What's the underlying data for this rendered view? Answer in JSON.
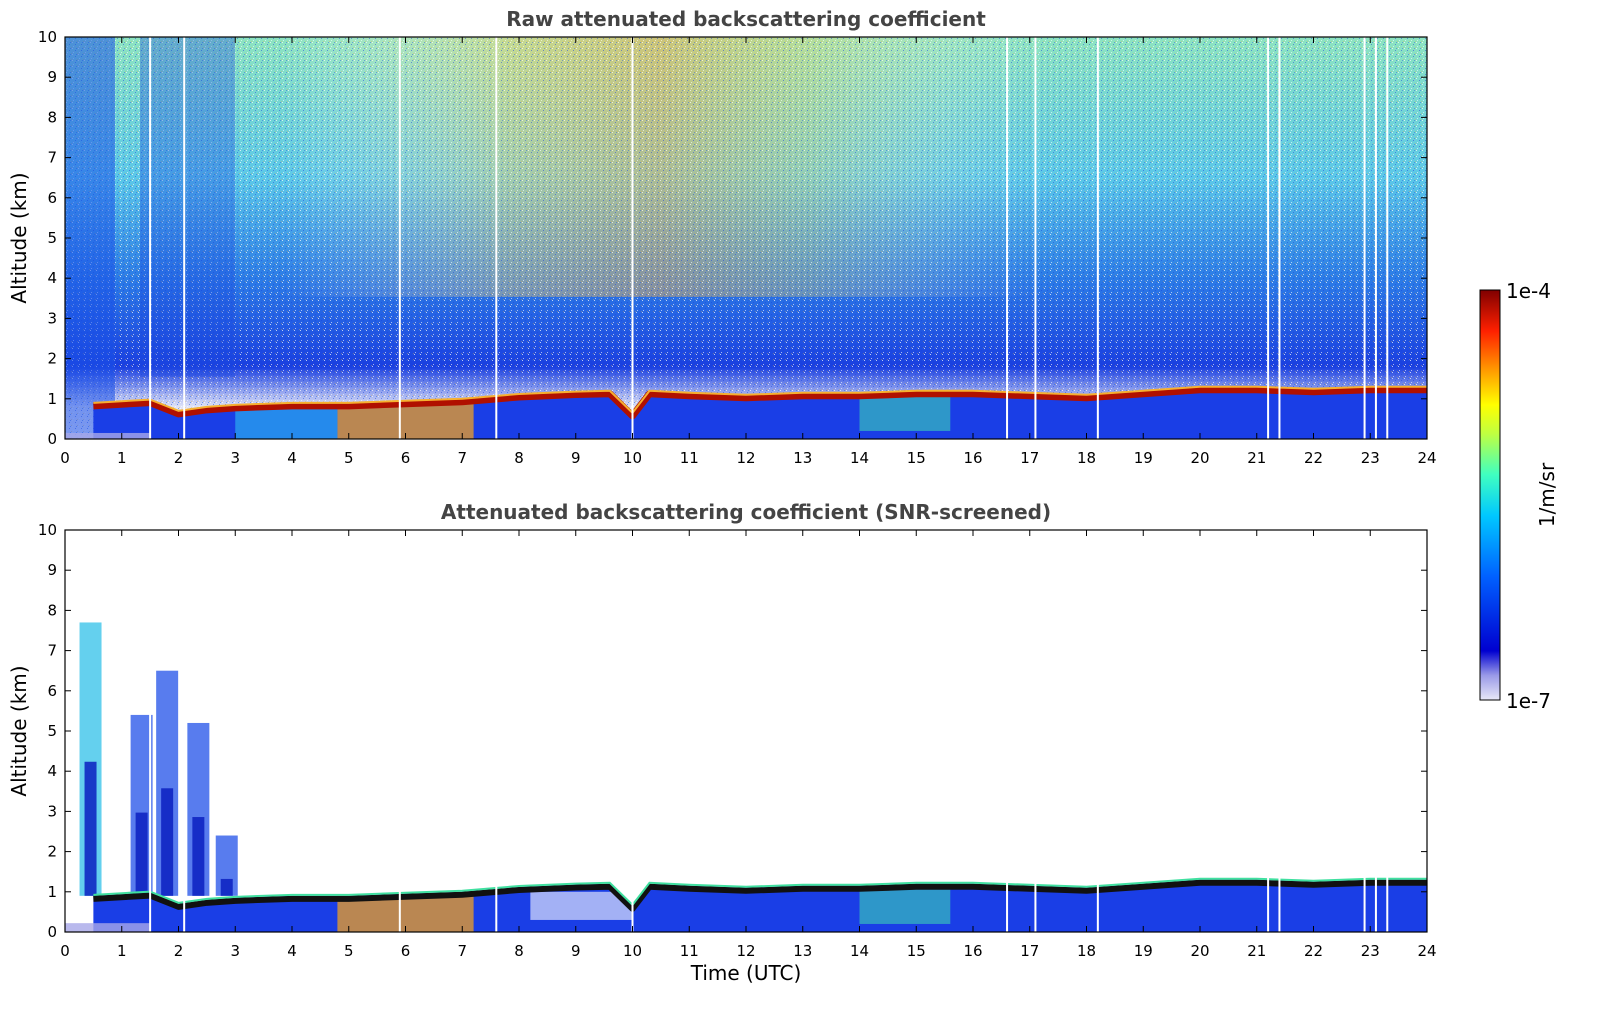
{
  "chart_data": [
    {
      "type": "heatmap",
      "title": "Raw attenuated backscattering coefficient",
      "xlabel": "",
      "ylabel": "Altitude (km)",
      "xlim": [
        0,
        24
      ],
      "ylim": [
        0,
        10
      ],
      "x_ticks": [
        0,
        1,
        2,
        3,
        4,
        5,
        6,
        7,
        8,
        9,
        10,
        11,
        12,
        13,
        14,
        15,
        16,
        17,
        18,
        19,
        20,
        21,
        22,
        23,
        24
      ],
      "y_ticks": [
        0,
        1,
        2,
        3,
        4,
        5,
        6,
        7,
        8,
        9,
        10
      ],
      "colorscale": "jet",
      "layer_top_km": {
        "time_utc": [
          0.5,
          1.5,
          2.0,
          2.5,
          3.0,
          4.0,
          5.0,
          6.0,
          7.0,
          8.0,
          9.0,
          9.6,
          10.0,
          10.3,
          11.0,
          12.0,
          13.0,
          14.0,
          15.0,
          16.0,
          17.0,
          18.0,
          19.0,
          20.0,
          21.0,
          22.0,
          23.0,
          24.0
        ],
        "altitude_km": [
          0.9,
          0.98,
          0.7,
          0.8,
          0.85,
          0.9,
          0.9,
          0.95,
          1.0,
          1.12,
          1.18,
          1.2,
          0.65,
          1.2,
          1.15,
          1.1,
          1.15,
          1.15,
          1.2,
          1.2,
          1.15,
          1.1,
          1.2,
          1.3,
          1.3,
          1.25,
          1.3,
          1.3
        ]
      },
      "gaps_utc": [
        1.5,
        2.1,
        5.9,
        7.6,
        10.0,
        16.6,
        17.1,
        18.2,
        21.2,
        21.4,
        22.9,
        23.1,
        23.3
      ]
    },
    {
      "type": "heatmap",
      "title": "Attenuated backscattering coefficient (SNR-screened)",
      "xlabel": "Time (UTC)",
      "ylabel": "Altitude (km)",
      "xlim": [
        0,
        24
      ],
      "ylim": [
        0,
        10
      ],
      "x_ticks": [
        0,
        1,
        2,
        3,
        4,
        5,
        6,
        7,
        8,
        9,
        10,
        11,
        12,
        13,
        14,
        15,
        16,
        17,
        18,
        19,
        20,
        21,
        22,
        23,
        24
      ],
      "y_ticks": [
        0,
        1,
        2,
        3,
        4,
        5,
        6,
        7,
        8,
        9,
        10
      ],
      "colorscale": "jet",
      "high_cloud_columns": [
        {
          "time_utc": 0.45,
          "top_km": 7.7
        },
        {
          "time_utc": 1.35,
          "top_km": 5.4
        },
        {
          "time_utc": 1.8,
          "top_km": 6.5
        },
        {
          "time_utc": 2.35,
          "top_km": 5.2
        },
        {
          "time_utc": 2.85,
          "top_km": 2.4
        }
      ]
    }
  ],
  "colorbar": {
    "label": "1/m/sr",
    "max_label": "1e-4",
    "min_label": "1e-7",
    "scale": "log",
    "range": [
      1e-07,
      0.0001
    ]
  }
}
